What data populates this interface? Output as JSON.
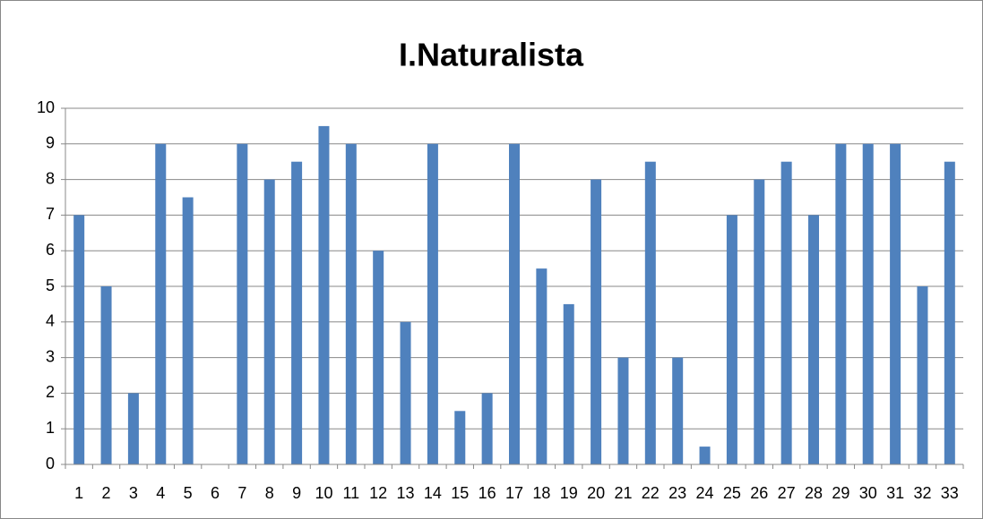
{
  "chart_data": {
    "type": "bar",
    "title": "I.Naturalista",
    "categories": [
      "1",
      "2",
      "3",
      "4",
      "5",
      "6",
      "7",
      "8",
      "9",
      "10",
      "11",
      "12",
      "13",
      "14",
      "15",
      "16",
      "17",
      "18",
      "19",
      "20",
      "21",
      "22",
      "23",
      "24",
      "25",
      "26",
      "27",
      "28",
      "29",
      "30",
      "31",
      "32",
      "33"
    ],
    "values": [
      7,
      5,
      2,
      9,
      7.5,
      0,
      9,
      8,
      8.5,
      9.5,
      9,
      6,
      4,
      9,
      1.5,
      2,
      9,
      5.5,
      4.5,
      8,
      3,
      8.5,
      3,
      0.5,
      7,
      8,
      8.5,
      7,
      9,
      9,
      9,
      5,
      8.5
    ],
    "color": "#4f81bd",
    "ylim": [
      0,
      10
    ],
    "yticks": [
      0,
      1,
      2,
      3,
      4,
      5,
      6,
      7,
      8,
      9,
      10
    ],
    "grid": true
  }
}
